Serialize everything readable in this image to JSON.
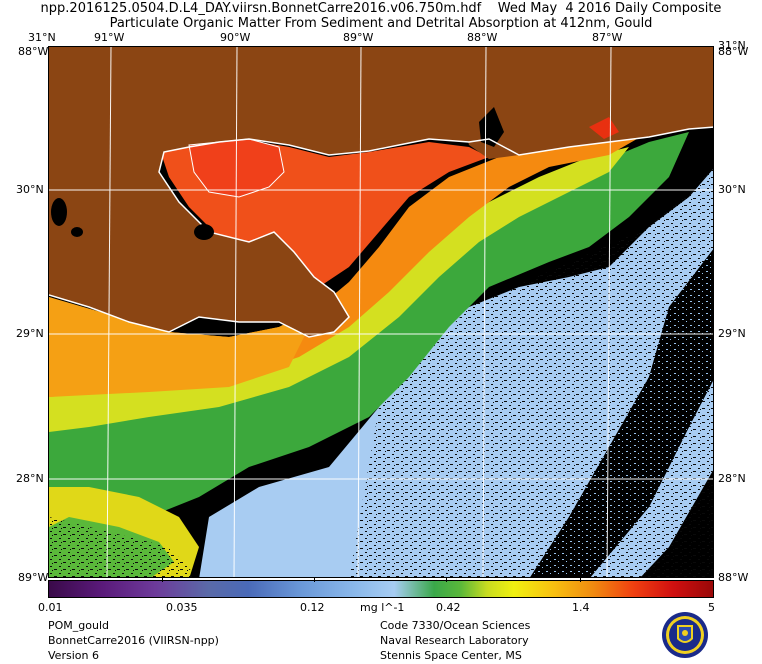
{
  "header": {
    "title_line1": "npp.2016125.0504.D.L4_DAY.viirsn.BonnetCarre2016.v06.750m.hdf    Wed May  4 2016 Daily Composite",
    "title_line2": "Particulate Organic Matter From Sediment and Detrital Absorption at 412nm, Gould"
  },
  "top_axis": {
    "corner_left": "31°N",
    "corner_right": "31°N",
    "longitudes": [
      "91°W",
      "90°W",
      "89°W",
      "88°W",
      "87°W"
    ]
  },
  "left_axis": {
    "top_corner": "88°W",
    "latitudes": [
      "30°N",
      "29°N",
      "28°N"
    ],
    "bottom_corner": "89°W"
  },
  "right_axis": {
    "top_corner": "88°W",
    "latitudes": [
      "30°N",
      "29°N",
      "28°N"
    ],
    "bottom_corner": "88°W"
  },
  "colorbar": {
    "tick_labels": [
      "0.01",
      "0.035",
      "0.12",
      "0.42",
      "1.4",
      "5"
    ],
    "units": "mg l^-1",
    "scale": "log"
  },
  "footer_left": [
    "POM_gould",
    "BonnetCarre2016 (VIIRSN-npp)",
    "Version 6"
  ],
  "footer_right": [
    "Code 7330/Ocean Sciences",
    "Naval Research Laboratory",
    "Stennis Space Center, MS"
  ],
  "logo": {
    "name": "naval-research-laboratory-seal"
  },
  "colors": {
    "land": "#8b4513",
    "no_data": "#000000",
    "coastline": "#ffffff",
    "graticule": "#ffffff"
  }
}
